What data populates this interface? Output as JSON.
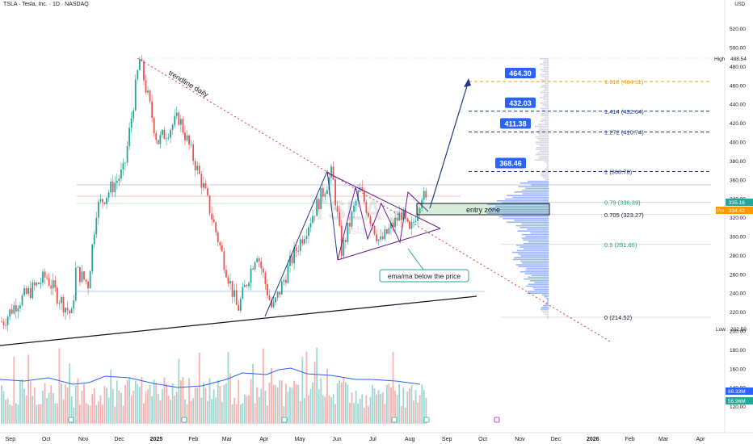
{
  "header": {
    "symbol": "TSLA · Tesla, Inc. · 1D · NASDAQ",
    "currency": "USD"
  },
  "watermark": {
    "ticker": "TSLA",
    "name": "Tesla"
  },
  "colors": {
    "up": "#26a69a",
    "down": "#ef5350",
    "fib_blue": "#1e3a8a",
    "fib_green": "#22a06b",
    "fib_orange": "#f59e0b",
    "callout_blue": "#2962ff",
    "ema": "#2962ff",
    "triangle": "#6a1b9a",
    "volume_profile": "#7b9cff",
    "trendline": "#e53935"
  },
  "price_axis": {
    "ticks": [
      "520.00",
      "500.00",
      "480.00",
      "460.00",
      "440.00",
      "420.00",
      "400.00",
      "380.00",
      "360.00",
      "340.00",
      "320.00",
      "300.00",
      "280.00",
      "260.00",
      "240.00",
      "220.00",
      "200.00",
      "180.00",
      "160.00",
      "140.00",
      "120.00"
    ],
    "high_label": "High",
    "high_value": "488.54",
    "low_label": "Low",
    "low_value": "202.59",
    "last_price_tag": "335.16",
    "pre_tag": "334.42",
    "pre_label": "Pre",
    "volume_tag_1": "88.33M",
    "volume_tag_2": "56.96M"
  },
  "time_axis": [
    "Sep",
    "Oct",
    "Nov",
    "Dec",
    "2025",
    "Feb",
    "Mar",
    "Apr",
    "May",
    "Jun",
    "Jul",
    "Aug",
    "Sep",
    "Oct",
    "Nov",
    "Dec",
    "2026",
    "Feb",
    "Mar",
    "Apr"
  ],
  "fib_levels": [
    {
      "label": "1.618 (464.11)",
      "price": 464.11,
      "color": "#f59e0b",
      "callout": "464.30"
    },
    {
      "label": "1.414 (432.64)",
      "price": 432.64,
      "color": "#1e3a8a",
      "callout": "432.03"
    },
    {
      "label": "1.272 (410.74)",
      "price": 410.74,
      "color": "#1e3a8a",
      "callout": "411.38"
    },
    {
      "label": "1 (368.78)",
      "price": 368.78,
      "color": "#1e3a8a",
      "callout": "368.46"
    },
    {
      "label": "0.79 (336.39)",
      "price": 336.39,
      "color": "#22a06b",
      "callout": ""
    },
    {
      "label": "0.705 (323.27)",
      "price": 323.27,
      "color": "#131722",
      "callout": ""
    },
    {
      "label": "0.5 (291.65)",
      "price": 291.65,
      "color": "#22a06b",
      "callout": ""
    },
    {
      "label": "0 (214.52)",
      "price": 214.52,
      "color": "#131722",
      "callout": ""
    }
  ],
  "annotations": {
    "trendline": "trendline daily",
    "entry_zone": "entry zone",
    "ema_note": "ema/ma below the price"
  },
  "chart_data": {
    "type": "candlestick",
    "title": "TSLA · Tesla, Inc. · 1D · NASDAQ",
    "ylim": [
      110,
      530
    ],
    "price_path": [
      {
        "date": "2024-08-26",
        "price": 210
      },
      {
        "date": "2024-09-05",
        "price": 228
      },
      {
        "date": "2024-09-20",
        "price": 245
      },
      {
        "date": "2024-10-01",
        "price": 258
      },
      {
        "date": "2024-10-10",
        "price": 238
      },
      {
        "date": "2024-10-23",
        "price": 215
      },
      {
        "date": "2024-10-25",
        "price": 265
      },
      {
        "date": "2024-11-05",
        "price": 250
      },
      {
        "date": "2024-11-12",
        "price": 330
      },
      {
        "date": "2024-12-05",
        "price": 370
      },
      {
        "date": "2024-12-18",
        "price": 488
      },
      {
        "date": "2025-01-02",
        "price": 400
      },
      {
        "date": "2025-01-20",
        "price": 426
      },
      {
        "date": "2025-02-10",
        "price": 350
      },
      {
        "date": "2025-03-10",
        "price": 222
      },
      {
        "date": "2025-03-26",
        "price": 285
      },
      {
        "date": "2025-04-08",
        "price": 222
      },
      {
        "date": "2025-04-24",
        "price": 275
      },
      {
        "date": "2025-05-28",
        "price": 368
      },
      {
        "date": "2025-06-05",
        "price": 284
      },
      {
        "date": "2025-06-20",
        "price": 350
      },
      {
        "date": "2025-07-07",
        "price": 293
      },
      {
        "date": "2025-07-25",
        "price": 325
      },
      {
        "date": "2025-08-01",
        "price": 302
      },
      {
        "date": "2025-08-11",
        "price": 346
      },
      {
        "date": "2025-08-15",
        "price": 335
      }
    ],
    "last_price": 335.16,
    "pre_market": 334.42,
    "high": 488.54,
    "low": 202.59,
    "volume_last": "88.33M",
    "volume_avg": "56.96M"
  }
}
